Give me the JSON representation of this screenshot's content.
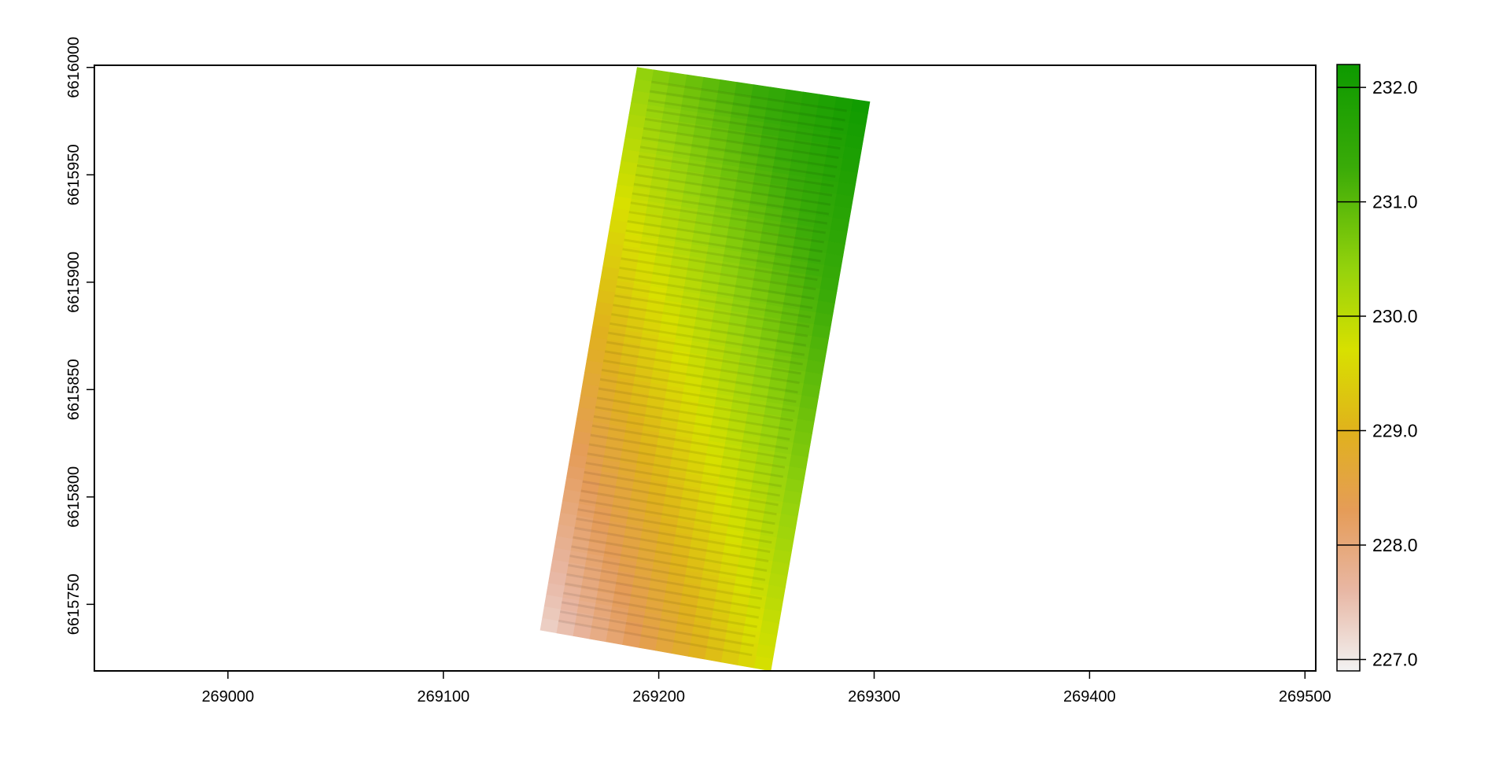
{
  "chart_data": {
    "type": "heatmap",
    "title": "",
    "xlabel": "",
    "ylabel": "",
    "xlim": [
      268938,
      269505
    ],
    "ylim": [
      6615719,
      6616001
    ],
    "x_ticks": [
      {
        "value": 269000,
        "label": "269000"
      },
      {
        "value": 269100,
        "label": "269100"
      },
      {
        "value": 269200,
        "label": "269200"
      },
      {
        "value": 269300,
        "label": "269300"
      },
      {
        "value": 269400,
        "label": "269400"
      },
      {
        "value": 269500,
        "label": "269500"
      }
    ],
    "y_ticks": [
      {
        "value": 6616000,
        "label": "6616000"
      },
      {
        "value": 6615950,
        "label": "6615950"
      },
      {
        "value": 6615900,
        "label": "6615900"
      },
      {
        "value": 6615850,
        "label": "6615850"
      },
      {
        "value": 6615800,
        "label": "6615800"
      },
      {
        "value": 6615750,
        "label": "6615750"
      }
    ],
    "raster_extent": {
      "corners": [
        {
          "x": 269190,
          "y": 6616000
        },
        {
          "x": 269298,
          "y": 6615984
        },
        {
          "x": 269252,
          "y": 6615719
        },
        {
          "x": 269145,
          "y": 6615738
        }
      ],
      "value_at_corners": [
        230.4,
        232.2,
        229.8,
        227.2
      ],
      "row_stripes": 60
    },
    "legend": {
      "placement": "right",
      "range": [
        226.9,
        232.2
      ],
      "ticks": [
        {
          "value": 227.0,
          "label": "227.0"
        },
        {
          "value": 228.0,
          "label": "228.0"
        },
        {
          "value": 229.0,
          "label": "229.0"
        },
        {
          "value": 230.0,
          "label": "230.0"
        },
        {
          "value": 231.0,
          "label": "231.0"
        },
        {
          "value": 232.0,
          "label": "232.0"
        }
      ],
      "color_stops": [
        {
          "value": 226.9,
          "color": "#f2f2f2"
        },
        {
          "value": 227.6,
          "color": "#e8b7a4"
        },
        {
          "value": 228.3,
          "color": "#e59c58"
        },
        {
          "value": 229.0,
          "color": "#e0b21c"
        },
        {
          "value": 229.7,
          "color": "#d8e000"
        },
        {
          "value": 230.4,
          "color": "#96d30c"
        },
        {
          "value": 231.3,
          "color": "#3aab08"
        },
        {
          "value": 232.2,
          "color": "#0d9a00"
        }
      ]
    }
  }
}
